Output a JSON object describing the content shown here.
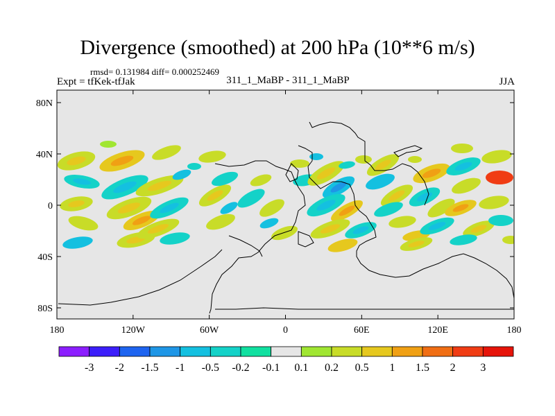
{
  "title": "Divergence (smoothed) at 200 hPa (10**6 m/s)",
  "stats": "rmsd= 0.131984 diff= 0.000252469",
  "experiment": "Expt = tfKek-tfJak",
  "run_label": "311_1_MaBP - 311_1_MaBP",
  "season": "JJA",
  "map": {
    "lat_ticks": [
      "80N",
      "40N",
      "0",
      "40S",
      "80S"
    ],
    "lon_ticks": [
      "180",
      "120W",
      "60W",
      "0",
      "60E",
      "120E",
      "180"
    ],
    "background": "#e6e6e6"
  },
  "colorbar": {
    "colors": [
      "#8c1eff",
      "#3c1efa",
      "#1e64f0",
      "#1e96e6",
      "#14c0e0",
      "#14d2c8",
      "#10e0a0",
      "#e6e6e6",
      "#a0e632",
      "#c8dc28",
      "#e6c81e",
      "#f0a014",
      "#f06e14",
      "#f03c14",
      "#e6140a"
    ],
    "labels": [
      "-3",
      "-2",
      "-1.5",
      "-1",
      "-0.5",
      "-0.2",
      "-0.1",
      "0.1",
      "0.2",
      "0.5",
      "1",
      "1.5",
      "2",
      "3"
    ]
  }
}
